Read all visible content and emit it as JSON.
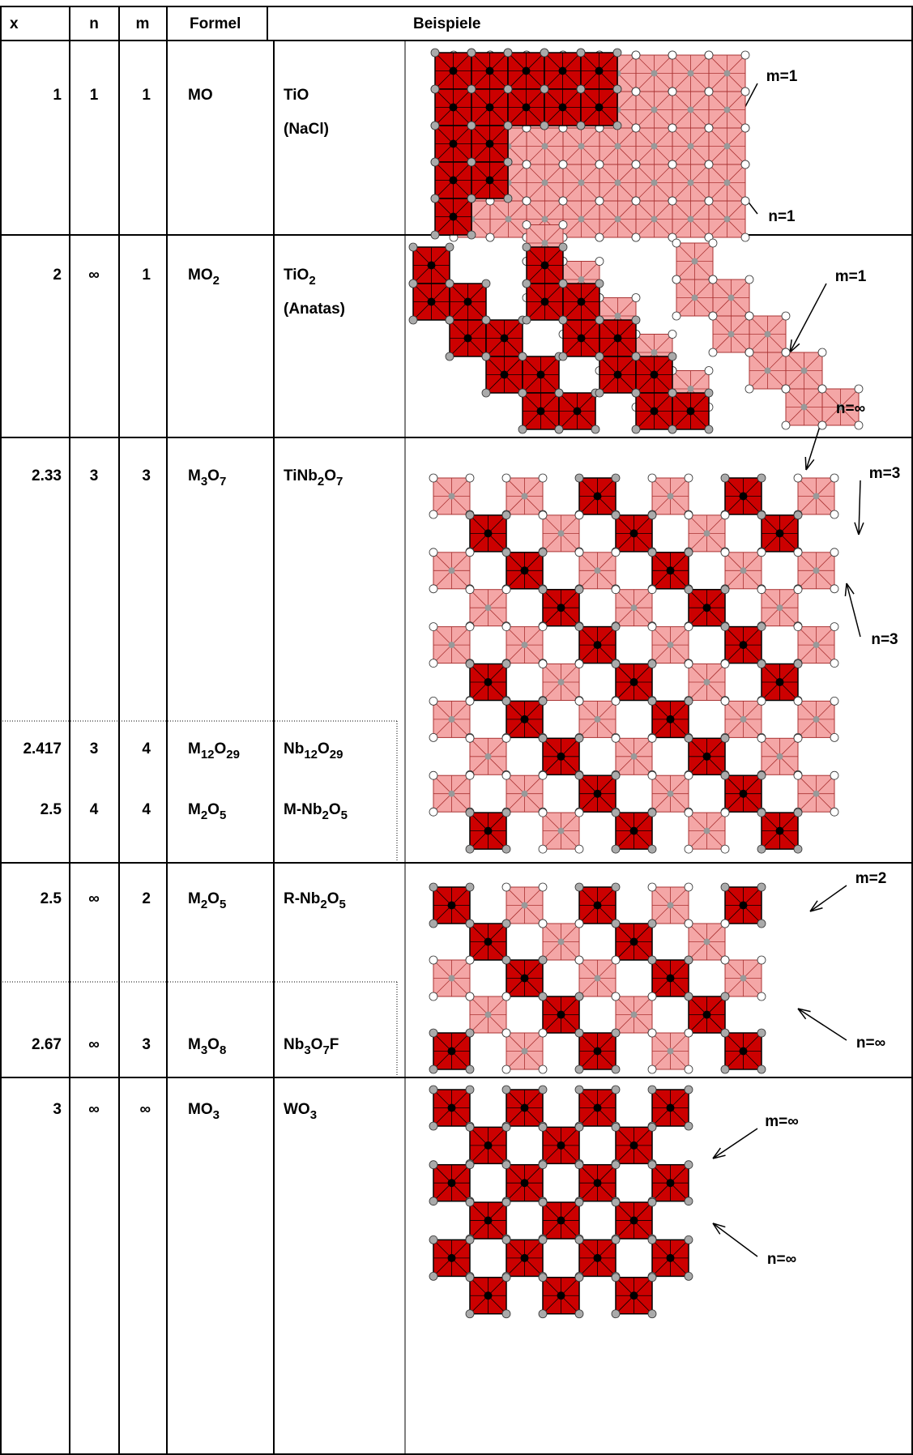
{
  "header": [
    "x",
    "n",
    "m",
    "Formel",
    "Beispiele"
  ],
  "rows": [
    {
      "x": "1",
      "n": "1",
      "m": "1",
      "formula": [
        {
          "text": "MO"
        }
      ],
      "example": [
        {
          "text": "TiO"
        }
      ],
      "note": "(NaCl)"
    },
    {
      "x": "2",
      "n": "∞",
      "m": "1",
      "formula": [
        {
          "text": "MO"
        },
        {
          "sub": "2"
        }
      ],
      "example": [
        {
          "text": "TiO"
        },
        {
          "sub": "2"
        }
      ],
      "note": "(Anatas)"
    },
    {
      "x": "2.33",
      "n": "3",
      "m": "3",
      "formula": [
        {
          "text": "M"
        },
        {
          "sub": "3"
        },
        {
          "text": "O"
        },
        {
          "sub": "7"
        }
      ],
      "example": [
        {
          "text": "TiNb"
        },
        {
          "sub": "2"
        },
        {
          "text": "O"
        },
        {
          "sub": "7"
        }
      ]
    },
    {
      "x": "2.417",
      "n": "3",
      "m": "4",
      "formula": [
        {
          "text": "M"
        },
        {
          "sub": "12"
        },
        {
          "text": "O"
        },
        {
          "sub": "29"
        }
      ],
      "example": [
        {
          "text": "Nb"
        },
        {
          "sub": "12"
        },
        {
          "text": "O"
        },
        {
          "sub": "29"
        }
      ]
    },
    {
      "x": "2.5",
      "n": "4",
      "m": "4",
      "formula": [
        {
          "text": "M"
        },
        {
          "sub": "2"
        },
        {
          "text": "O"
        },
        {
          "sub": "5"
        }
      ],
      "example": [
        {
          "text": "M-Nb"
        },
        {
          "sub": "2"
        },
        {
          "text": "O"
        },
        {
          "sub": "5"
        }
      ]
    },
    {
      "x": "2.5",
      "n": "∞",
      "m": "2",
      "formula": [
        {
          "text": "M"
        },
        {
          "sub": "2"
        },
        {
          "text": "O"
        },
        {
          "sub": "5"
        }
      ],
      "example": [
        {
          "text": "R-Nb"
        },
        {
          "sub": "2"
        },
        {
          "text": "O"
        },
        {
          "sub": "5"
        }
      ]
    },
    {
      "x": "2.67",
      "n": "∞",
      "m": "3",
      "formula": [
        {
          "text": "M"
        },
        {
          "sub": "3"
        },
        {
          "text": "O"
        },
        {
          "sub": "8"
        }
      ],
      "example": [
        {
          "text": "Nb"
        },
        {
          "sub": "3"
        },
        {
          "text": "O"
        },
        {
          "sub": "7"
        },
        {
          "text": "F"
        }
      ]
    },
    {
      "x": "3",
      "n": "∞",
      "m": "∞",
      "formula": [
        {
          "text": "MO"
        },
        {
          "sub": "3"
        }
      ],
      "example": [
        {
          "text": "WO"
        },
        {
          "sub": "3"
        }
      ]
    }
  ],
  "panels": [
    {
      "m": "m=1",
      "n": "n=1"
    },
    {
      "m": "m=1",
      "n": "n=∞"
    },
    {
      "m": "m=3",
      "n": "n=3"
    },
    {
      "m": "m=2",
      "n": "n=∞"
    },
    {
      "m": "m=∞",
      "n": "n=∞"
    }
  ]
}
